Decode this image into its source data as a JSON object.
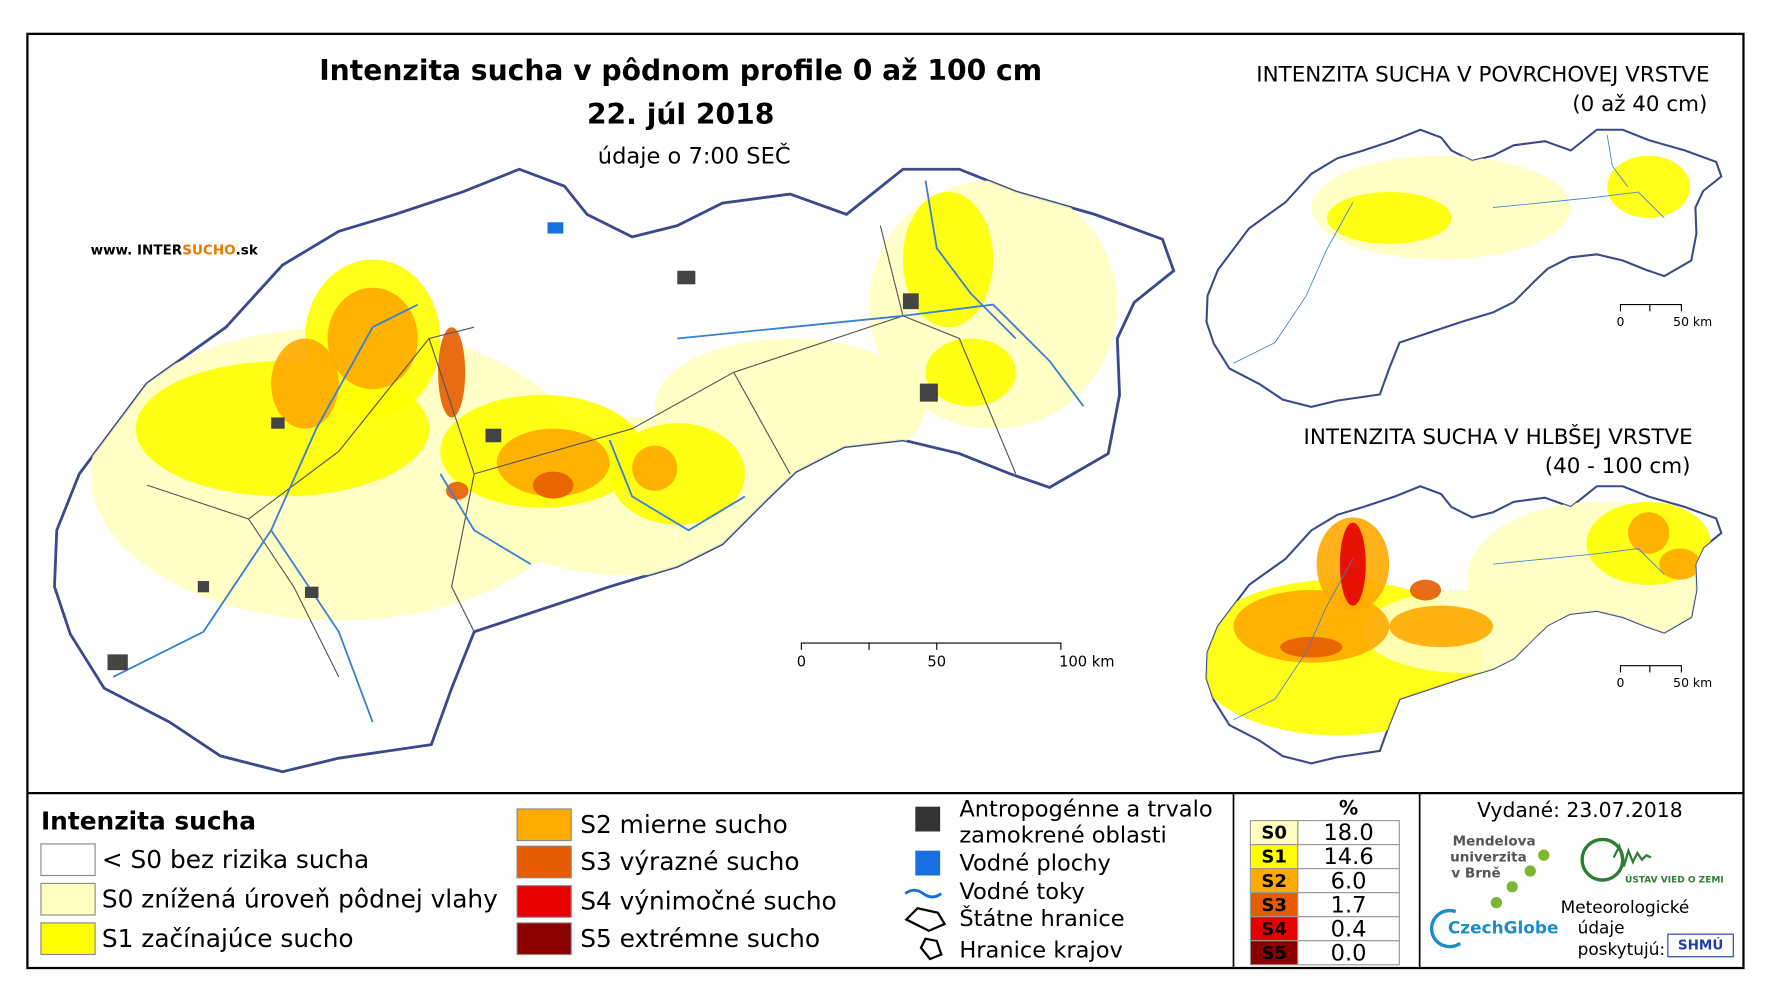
{
  "main_map": {
    "title": "Intenzita sucha v pôdnom profile 0 až 100 cm",
    "date": "22. júl 2018",
    "subtitle": "údaje o 7:00 SEČ",
    "website": [
      "www. INTER",
      "SUCHO",
      ".sk"
    ],
    "scale": [
      "0",
      "50",
      "100 km"
    ]
  },
  "surface_map": {
    "title": "INTENZITA SUCHA V POVRCHOVEJ VRSTVE",
    "depth": "(0 až 40 cm)",
    "scale": [
      "0",
      "50 km"
    ]
  },
  "deep_map": {
    "title": "INTENZITA SUCHA V HLBŠEJ VRSTVE",
    "depth": "(40 - 100 cm)",
    "scale": [
      "0",
      "50 km"
    ]
  },
  "legend": {
    "title": "Intenzita sucha",
    "items": [
      {
        "label": "< S0 bez rizika sucha",
        "color": "#ffffff"
      },
      {
        "label": "S0 znížená úroveň pôdnej vlahy",
        "color": "#ffffc0"
      },
      {
        "label": "S1 začínajúce sucho",
        "color": "#ffff00"
      },
      {
        "label": "S2 mierne sucho",
        "color": "#ffaa00"
      },
      {
        "label": "S3 výrazné sucho",
        "color": "#e65c00"
      },
      {
        "label": "S4 výnimočné sucho",
        "color": "#e60000"
      },
      {
        "label": "S5 extrémne sucho",
        "color": "#8b0000"
      }
    ]
  },
  "symbols": {
    "anthropogenic": [
      "Antropogénne a trvalo",
      "zamokrené oblasti"
    ],
    "water_bodies": "Vodné plochy",
    "rivers": "Vodné toky",
    "state_borders": "Štátne hranice",
    "region_borders": "Hranice krajov"
  },
  "stats": {
    "header": "%",
    "rows": [
      {
        "class": "S0",
        "value": "18.0",
        "color": "#ffffc0"
      },
      {
        "class": "S1",
        "value": "14.6",
        "color": "#ffff00"
      },
      {
        "class": "S2",
        "value": "6.0",
        "color": "#ffaa00"
      },
      {
        "class": "S3",
        "value": "1.7",
        "color": "#e65c00"
      },
      {
        "class": "S4",
        "value": "0.4",
        "color": "#e60000"
      },
      {
        "class": "S5",
        "value": "0.0",
        "color": "#8b0000"
      }
    ]
  },
  "issued": "Vydané: 23.07.2018",
  "logos": {
    "mendel": [
      "Mendelova",
      "univerzita",
      "v Brně"
    ],
    "czechglobe": "CzechGlobe",
    "ustav": "ÚSTAV VIED O ZEMI",
    "meteo": [
      "Meteorologické",
      "údaje",
      "poskytujú:"
    ],
    "shmu": "SHMÚ"
  }
}
